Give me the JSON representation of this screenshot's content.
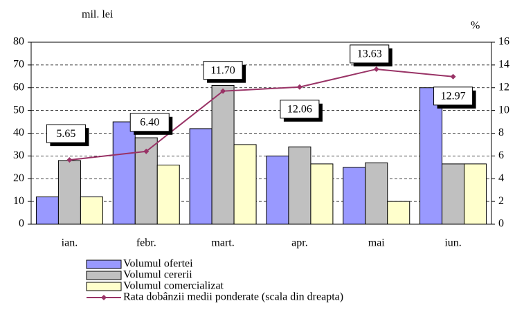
{
  "chart_data": {
    "type": "bar",
    "y_label": "mil. lei",
    "y2_label": "%",
    "categories": [
      "ian.",
      "febr.",
      "mart.",
      "apr.",
      "mai",
      "iun."
    ],
    "series": [
      {
        "name": "Volumul ofertei",
        "color": "#9999ff",
        "values": [
          12,
          45,
          42,
          30,
          25,
          60
        ]
      },
      {
        "name": "Volumul cererii",
        "color": "#c0c0c0",
        "values": [
          28,
          38,
          61,
          34,
          27,
          26.5
        ]
      },
      {
        "name": "Volumul comercializat",
        "color": "#ffffcc",
        "values": [
          12,
          26,
          35,
          26.5,
          10,
          26.5
        ]
      },
      {
        "name": "Rata dobânzii medii ponderate (scala din dreapta)",
        "type": "line",
        "axis": "y2",
        "color": "#993366",
        "values": [
          5.65,
          6.4,
          11.7,
          12.06,
          13.63,
          12.97
        ],
        "value_labels": [
          "5.65",
          "6.40",
          "11.70",
          "12.06",
          "13.63",
          "12.97"
        ]
      }
    ],
    "ylim": [
      0,
      80
    ],
    "yticks": [
      0,
      10,
      20,
      30,
      40,
      50,
      60,
      70,
      80
    ],
    "y2lim": [
      0,
      16
    ],
    "y2ticks": [
      0,
      2,
      4,
      6,
      8,
      10,
      12,
      14,
      16
    ],
    "grid": true
  }
}
